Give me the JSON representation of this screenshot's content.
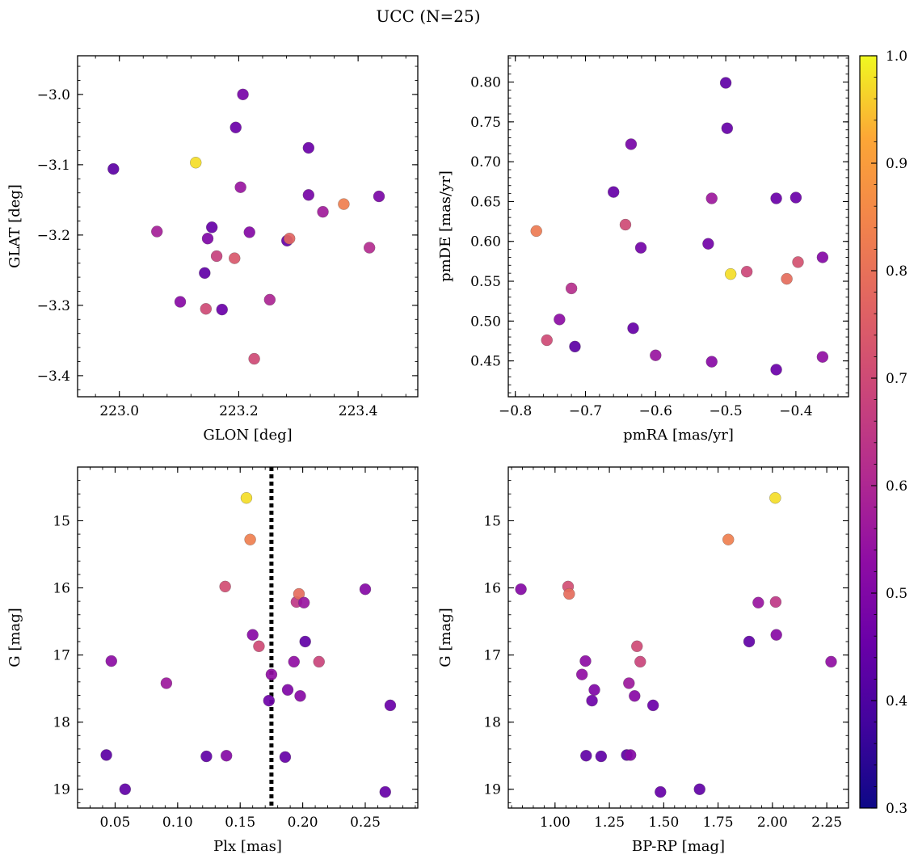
{
  "figure": {
    "title": "UCC (N=25)",
    "colormap": "plasma",
    "colorbar": {
      "range": [
        0.3,
        1.0
      ],
      "ticks": [
        0.3,
        0.4,
        0.5,
        0.6,
        0.7,
        0.8,
        0.9,
        1.0
      ],
      "tick_labels": [
        "0.3",
        "0.4",
        "0.5",
        "0.6",
        "0.7",
        "0.8",
        "0.9",
        "1.0"
      ]
    }
  },
  "chart_data": [
    {
      "type": "scatter",
      "id": "glon-glat",
      "xlabel": "GLON [deg]",
      "ylabel": "GLAT [deg]",
      "xlim": [
        222.93,
        223.5
      ],
      "ylim": [
        -3.43,
        -2.945
      ],
      "y_inverted": false,
      "xticks": [
        223.0,
        223.2,
        223.4
      ],
      "xtick_labels": [
        "223.0",
        "223.2",
        "223.4"
      ],
      "yticks": [
        -3.4,
        -3.3,
        -3.2,
        -3.1,
        -3.0
      ],
      "ytick_labels": [
        "−3.4",
        "−3.3",
        "−3.2",
        "−3.1",
        "−3.0"
      ],
      "points": [
        {
          "x": 222.99,
          "y": -3.106,
          "c": 0.35
        },
        {
          "x": 223.128,
          "y": -3.097,
          "c": 0.97
        },
        {
          "x": 223.063,
          "y": -3.195,
          "c": 0.52
        },
        {
          "x": 223.102,
          "y": -3.295,
          "c": 0.45
        },
        {
          "x": 223.143,
          "y": -3.254,
          "c": 0.36
        },
        {
          "x": 223.145,
          "y": -3.305,
          "c": 0.66
        },
        {
          "x": 223.148,
          "y": -3.205,
          "c": 0.43
        },
        {
          "x": 223.155,
          "y": -3.189,
          "c": 0.37
        },
        {
          "x": 223.163,
          "y": -3.23,
          "c": 0.63
        },
        {
          "x": 223.172,
          "y": -3.306,
          "c": 0.38
        },
        {
          "x": 223.193,
          "y": -3.233,
          "c": 0.7
        },
        {
          "x": 223.195,
          "y": -3.047,
          "c": 0.38
        },
        {
          "x": 223.203,
          "y": -3.132,
          "c": 0.49
        },
        {
          "x": 223.207,
          "y": -3.0,
          "c": 0.41
        },
        {
          "x": 223.218,
          "y": -3.196,
          "c": 0.44
        },
        {
          "x": 223.226,
          "y": -3.376,
          "c": 0.66
        },
        {
          "x": 223.252,
          "y": -3.292,
          "c": 0.54
        },
        {
          "x": 223.281,
          "y": -3.208,
          "c": 0.37
        },
        {
          "x": 223.285,
          "y": -3.205,
          "c": 0.74
        },
        {
          "x": 223.317,
          "y": -3.076,
          "c": 0.38
        },
        {
          "x": 223.317,
          "y": -3.143,
          "c": 0.41
        },
        {
          "x": 223.341,
          "y": -3.167,
          "c": 0.51
        },
        {
          "x": 223.376,
          "y": -3.156,
          "c": 0.81
        },
        {
          "x": 223.419,
          "y": -3.218,
          "c": 0.56
        },
        {
          "x": 223.435,
          "y": -3.145,
          "c": 0.42
        }
      ]
    },
    {
      "type": "scatter",
      "id": "pmra-pmde",
      "xlabel": "pmRA [mas/yr]",
      "ylabel": "pmDE [mas/yr]",
      "xlim": [
        -0.81,
        -0.325
      ],
      "ylim": [
        0.405,
        0.833
      ],
      "y_inverted": false,
      "xticks": [
        -0.8,
        -0.7,
        -0.6,
        -0.5,
        -0.4
      ],
      "xtick_labels": [
        "−0.8",
        "−0.7",
        "−0.6",
        "−0.5",
        "−0.4"
      ],
      "yticks": [
        0.45,
        0.5,
        0.55,
        0.6,
        0.65,
        0.7,
        0.75,
        0.8
      ],
      "ytick_labels": [
        "0.45",
        "0.50",
        "0.55",
        "0.60",
        "0.65",
        "0.70",
        "0.75",
        "0.80"
      ],
      "points": [
        {
          "x": -0.77,
          "y": 0.613,
          "c": 0.8
        },
        {
          "x": -0.755,
          "y": 0.476,
          "c": 0.66
        },
        {
          "x": -0.737,
          "y": 0.502,
          "c": 0.46
        },
        {
          "x": -0.72,
          "y": 0.541,
          "c": 0.57
        },
        {
          "x": -0.715,
          "y": 0.468,
          "c": 0.35
        },
        {
          "x": -0.66,
          "y": 0.662,
          "c": 0.37
        },
        {
          "x": -0.643,
          "y": 0.621,
          "c": 0.66
        },
        {
          "x": -0.635,
          "y": 0.722,
          "c": 0.41
        },
        {
          "x": -0.632,
          "y": 0.491,
          "c": 0.37
        },
        {
          "x": -0.621,
          "y": 0.592,
          "c": 0.4
        },
        {
          "x": -0.6,
          "y": 0.457,
          "c": 0.49
        },
        {
          "x": -0.525,
          "y": 0.597,
          "c": 0.4
        },
        {
          "x": -0.52,
          "y": 0.654,
          "c": 0.5
        },
        {
          "x": -0.52,
          "y": 0.449,
          "c": 0.45
        },
        {
          "x": -0.5,
          "y": 0.799,
          "c": 0.36
        },
        {
          "x": -0.498,
          "y": 0.742,
          "c": 0.37
        },
        {
          "x": -0.493,
          "y": 0.559,
          "c": 0.97
        },
        {
          "x": -0.47,
          "y": 0.562,
          "c": 0.65
        },
        {
          "x": -0.428,
          "y": 0.654,
          "c": 0.38
        },
        {
          "x": -0.428,
          "y": 0.439,
          "c": 0.38
        },
        {
          "x": -0.413,
          "y": 0.553,
          "c": 0.76
        },
        {
          "x": -0.4,
          "y": 0.655,
          "c": 0.38
        },
        {
          "x": -0.397,
          "y": 0.574,
          "c": 0.68
        },
        {
          "x": -0.362,
          "y": 0.58,
          "c": 0.44
        },
        {
          "x": -0.362,
          "y": 0.455,
          "c": 0.47
        }
      ]
    },
    {
      "type": "scatter",
      "id": "plx-g",
      "xlabel": "Plx [mas]",
      "ylabel": "G [mag]",
      "xlim": [
        0.02,
        0.292
      ],
      "ylim": [
        19.28,
        14.2
      ],
      "y_inverted": true,
      "xticks": [
        0.05,
        0.1,
        0.15,
        0.2,
        0.25
      ],
      "xtick_labels": [
        "0.05",
        "0.10",
        "0.15",
        "0.20",
        "0.25"
      ],
      "yticks": [
        15,
        16,
        17,
        18,
        19
      ],
      "ytick_labels": [
        "15",
        "16",
        "17",
        "18",
        "19"
      ],
      "vline": {
        "x": 0.175,
        "style": "dotted"
      },
      "points": [
        {
          "x": 0.043,
          "y": 18.49,
          "c": 0.35
        },
        {
          "x": 0.047,
          "y": 17.09,
          "c": 0.46
        },
        {
          "x": 0.058,
          "y": 19.0,
          "c": 0.36
        },
        {
          "x": 0.091,
          "y": 17.42,
          "c": 0.5
        },
        {
          "x": 0.123,
          "y": 18.51,
          "c": 0.36
        },
        {
          "x": 0.138,
          "y": 15.98,
          "c": 0.67
        },
        {
          "x": 0.139,
          "y": 18.5,
          "c": 0.44
        },
        {
          "x": 0.155,
          "y": 14.66,
          "c": 0.97
        },
        {
          "x": 0.158,
          "y": 15.28,
          "c": 0.81
        },
        {
          "x": 0.16,
          "y": 16.7,
          "c": 0.45
        },
        {
          "x": 0.165,
          "y": 16.87,
          "c": 0.66
        },
        {
          "x": 0.173,
          "y": 17.68,
          "c": 0.39
        },
        {
          "x": 0.175,
          "y": 17.29,
          "c": 0.47
        },
        {
          "x": 0.186,
          "y": 18.52,
          "c": 0.37
        },
        {
          "x": 0.188,
          "y": 17.52,
          "c": 0.43
        },
        {
          "x": 0.193,
          "y": 17.1,
          "c": 0.47
        },
        {
          "x": 0.195,
          "y": 16.21,
          "c": 0.6
        },
        {
          "x": 0.197,
          "y": 16.09,
          "c": 0.76
        },
        {
          "x": 0.198,
          "y": 17.61,
          "c": 0.45
        },
        {
          "x": 0.201,
          "y": 16.22,
          "c": 0.49
        },
        {
          "x": 0.202,
          "y": 16.8,
          "c": 0.36
        },
        {
          "x": 0.213,
          "y": 17.1,
          "c": 0.64
        },
        {
          "x": 0.25,
          "y": 16.02,
          "c": 0.44
        },
        {
          "x": 0.266,
          "y": 19.04,
          "c": 0.37
        },
        {
          "x": 0.27,
          "y": 17.75,
          "c": 0.38
        }
      ]
    },
    {
      "type": "scatter",
      "id": "bprp-g",
      "xlabel": "BP-RP [mag]",
      "ylabel": "G [mag]",
      "xlim": [
        0.785,
        2.35
      ],
      "ylim": [
        19.28,
        14.2
      ],
      "y_inverted": true,
      "xticks": [
        1.0,
        1.25,
        1.5,
        1.75,
        2.0,
        2.25
      ],
      "xtick_labels": [
        "1.00",
        "1.25",
        "1.50",
        "1.75",
        "2.00",
        "2.25"
      ],
      "yticks": [
        15,
        16,
        17,
        18,
        19
      ],
      "ytick_labels": [
        "15",
        "16",
        "17",
        "18",
        "19"
      ],
      "points": [
        {
          "x": 0.843,
          "y": 16.02,
          "c": 0.44
        },
        {
          "x": 1.06,
          "y": 15.98,
          "c": 0.67
        },
        {
          "x": 1.065,
          "y": 16.09,
          "c": 0.76
        },
        {
          "x": 1.124,
          "y": 17.29,
          "c": 0.47
        },
        {
          "x": 1.14,
          "y": 17.09,
          "c": 0.46
        },
        {
          "x": 1.143,
          "y": 18.5,
          "c": 0.36
        },
        {
          "x": 1.17,
          "y": 17.68,
          "c": 0.39
        },
        {
          "x": 1.181,
          "y": 17.52,
          "c": 0.43
        },
        {
          "x": 1.212,
          "y": 18.51,
          "c": 0.36
        },
        {
          "x": 1.33,
          "y": 18.49,
          "c": 0.35
        },
        {
          "x": 1.34,
          "y": 17.42,
          "c": 0.5
        },
        {
          "x": 1.347,
          "y": 18.49,
          "c": 0.44
        },
        {
          "x": 1.366,
          "y": 17.61,
          "c": 0.45
        },
        {
          "x": 1.377,
          "y": 16.87,
          "c": 0.66
        },
        {
          "x": 1.392,
          "y": 17.1,
          "c": 0.64
        },
        {
          "x": 1.451,
          "y": 17.75,
          "c": 0.38
        },
        {
          "x": 1.485,
          "y": 19.04,
          "c": 0.37
        },
        {
          "x": 1.665,
          "y": 19.0,
          "c": 0.36
        },
        {
          "x": 1.797,
          "y": 15.28,
          "c": 0.81
        },
        {
          "x": 1.893,
          "y": 16.8,
          "c": 0.36
        },
        {
          "x": 1.935,
          "y": 16.22,
          "c": 0.49
        },
        {
          "x": 2.013,
          "y": 14.66,
          "c": 0.97
        },
        {
          "x": 2.015,
          "y": 16.21,
          "c": 0.6
        },
        {
          "x": 2.018,
          "y": 16.7,
          "c": 0.45
        },
        {
          "x": 2.27,
          "y": 17.1,
          "c": 0.47
        }
      ]
    }
  ]
}
